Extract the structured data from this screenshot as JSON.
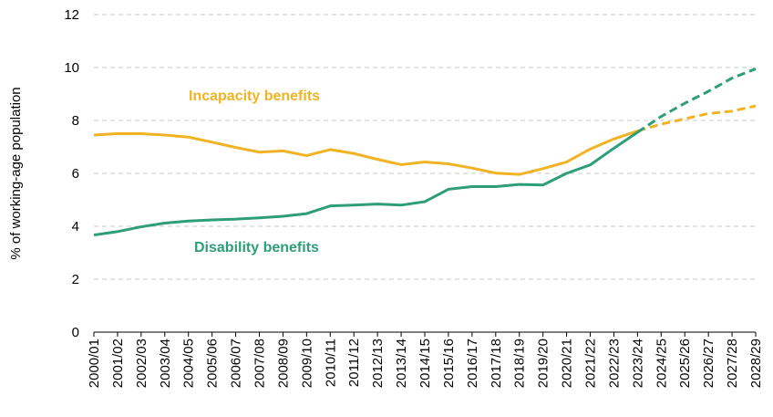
{
  "chart_data": {
    "type": "line",
    "title": "",
    "xlabel": "",
    "ylabel": "% of working-age population",
    "ylim": [
      0,
      12
    ],
    "yticks": [
      0,
      2,
      4,
      6,
      8,
      10,
      12
    ],
    "grid": "horizontal dashed",
    "categories": [
      "2000/01",
      "2001/02",
      "2002/03",
      "2003/04",
      "2004/05",
      "2005/06",
      "2006/07",
      "2007/08",
      "2008/09",
      "2009/10",
      "2010/11",
      "2011/12",
      "2012/13",
      "2013/14",
      "2014/15",
      "2015/16",
      "2016/17",
      "2017/18",
      "2018/19",
      "2019/20",
      "2020/21",
      "2021/22",
      "2022/23",
      "2023/24",
      "2024/25",
      "2025/26",
      "2026/27",
      "2027/28",
      "2028/29"
    ],
    "forecast_start": "2023/24",
    "series": [
      {
        "name": "Incapacity benefits",
        "color": "#F0B323",
        "values": [
          7.45,
          7.5,
          7.5,
          7.45,
          7.37,
          7.18,
          6.98,
          6.8,
          6.85,
          6.67,
          6.9,
          6.75,
          6.53,
          6.33,
          6.43,
          6.36,
          6.2,
          6.01,
          5.96,
          6.18,
          6.43,
          6.92,
          7.3,
          7.6,
          7.86,
          8.06,
          8.26,
          8.35,
          8.55
        ]
      },
      {
        "name": "Disability benefits",
        "color": "#2E9E7A",
        "values": [
          3.67,
          3.8,
          3.98,
          4.12,
          4.2,
          4.24,
          4.27,
          4.32,
          4.38,
          4.48,
          4.77,
          4.8,
          4.84,
          4.8,
          4.93,
          5.4,
          5.5,
          5.5,
          5.58,
          5.56,
          6.0,
          6.32,
          6.95,
          7.55,
          8.15,
          8.65,
          9.1,
          9.6,
          9.95
        ]
      }
    ]
  }
}
